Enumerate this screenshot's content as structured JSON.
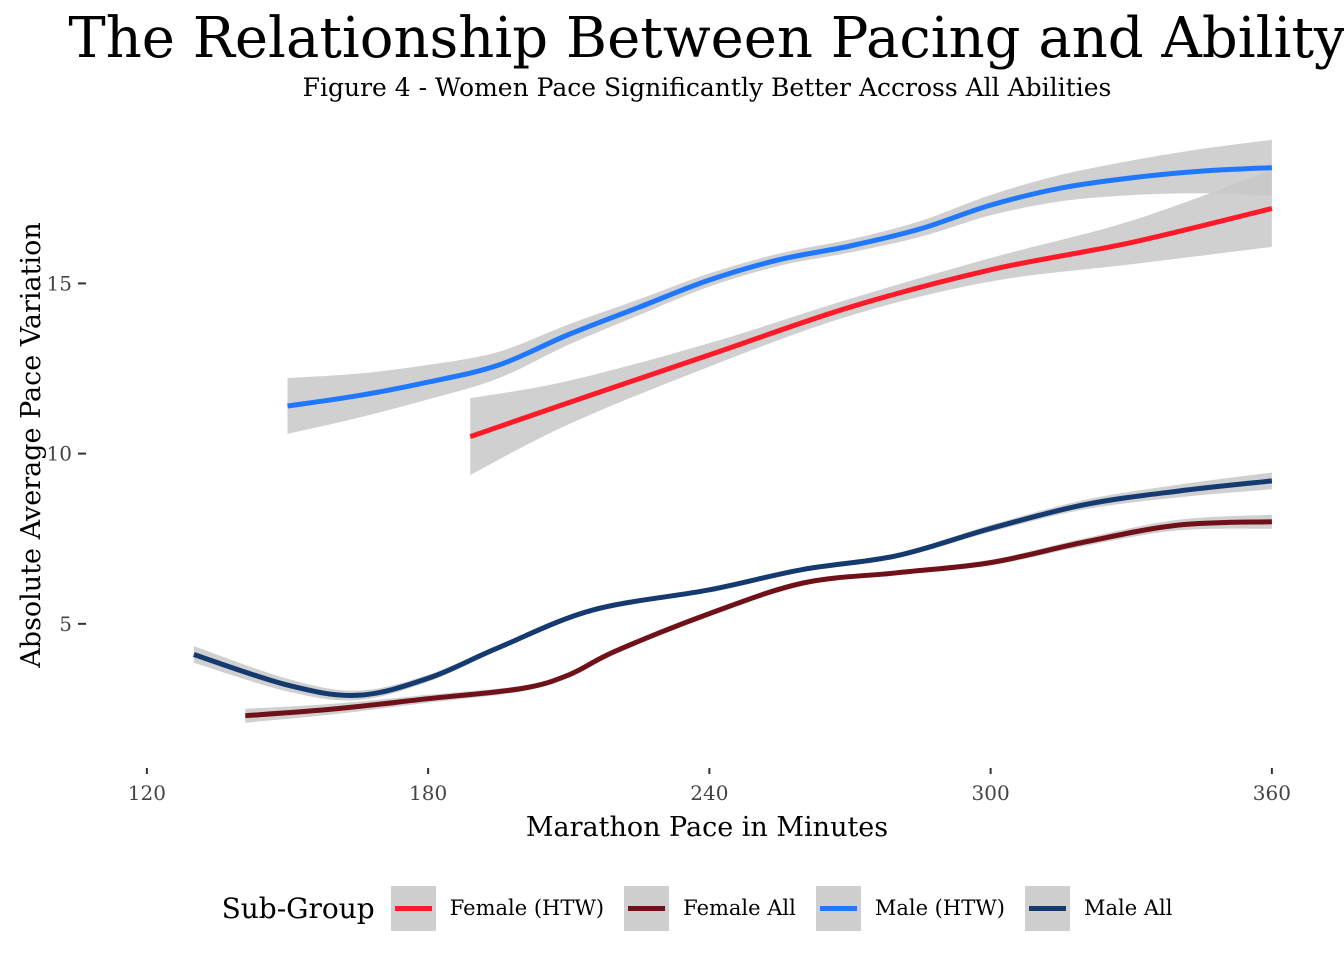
{
  "chart_data": {
    "type": "line",
    "title": "The Relationship Between Pacing and Ability",
    "subtitle": "Figure 4 - Women Pace Significantly Better Accross All Abilities",
    "xlabel": "Marathon Pace in Minutes",
    "ylabel": "Absolute Average Pace Variation",
    "xlim": [
      110,
      366
    ],
    "ylim": [
      1.0,
      19.8
    ],
    "xticks": [
      120,
      180,
      240,
      300,
      360
    ],
    "yticks": [
      5,
      10,
      15
    ],
    "grid": false,
    "legend": {
      "title": "Sub-Group",
      "placement": "bottom"
    },
    "series": [
      {
        "name": "Female (HTW)",
        "color": "#ff1a2a",
        "x": [
          189,
          210,
          240,
          270,
          300,
          330,
          360
        ],
        "y": [
          10.5,
          11.5,
          12.9,
          14.3,
          15.4,
          16.2,
          17.2
        ],
        "band": 0.55
      },
      {
        "name": "Female All",
        "color": "#701018",
        "x": [
          141,
          160,
          180,
          200,
          210,
          220,
          240,
          260,
          280,
          300,
          320,
          340,
          360
        ],
        "y": [
          2.3,
          2.5,
          2.8,
          3.1,
          3.5,
          4.2,
          5.3,
          6.2,
          6.5,
          6.8,
          7.4,
          7.9,
          8.0
        ],
        "band": 0.1
      },
      {
        "name": "Male (HTW)",
        "color": "#1f78ff",
        "x": [
          150,
          165,
          180,
          195,
          210,
          225,
          240,
          255,
          270,
          285,
          300,
          315,
          330,
          345,
          360
        ],
        "y": [
          11.4,
          11.7,
          12.1,
          12.6,
          13.5,
          14.3,
          15.1,
          15.7,
          16.1,
          16.6,
          17.3,
          17.8,
          18.1,
          18.3,
          18.4
        ],
        "band": 0.4
      },
      {
        "name": "Male All",
        "color": "#143a70",
        "x": [
          130,
          150,
          165,
          180,
          195,
          215,
          240,
          260,
          280,
          300,
          320,
          340,
          360
        ],
        "y": [
          4.1,
          3.2,
          2.9,
          3.4,
          4.3,
          5.4,
          6.0,
          6.6,
          7.0,
          7.8,
          8.5,
          8.9,
          9.2
        ],
        "band": 0.12
      }
    ]
  }
}
